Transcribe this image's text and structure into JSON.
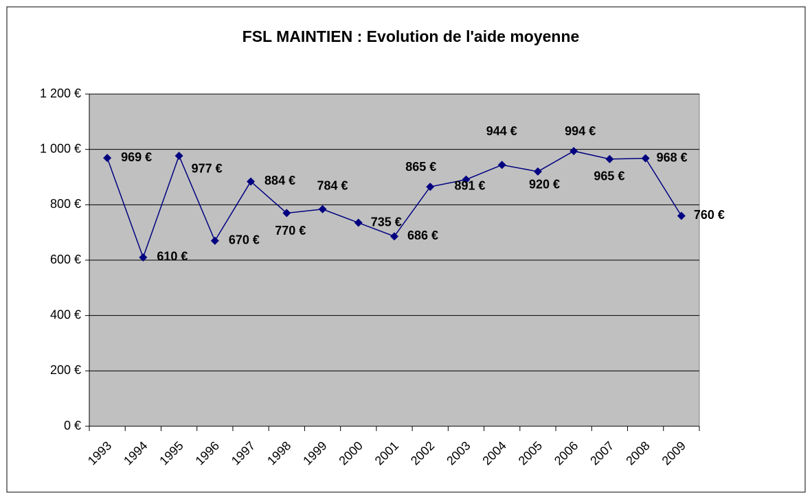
{
  "chart_data": {
    "type": "line",
    "title": "FSL MAINTIEN : Evolution de l'aide moyenne",
    "categories": [
      "1993",
      "1994",
      "1995",
      "1996",
      "1997",
      "1998",
      "1999",
      "2000",
      "2001",
      "2002",
      "2003",
      "2004",
      "2005",
      "2006",
      "2007",
      "2008",
      "2009"
    ],
    "series": [
      {
        "name": null,
        "color": "#000080",
        "values": [
          969,
          610,
          977,
          670,
          884,
          770,
          784,
          735,
          686,
          865,
          891,
          944,
          920,
          994,
          965,
          968,
          760
        ],
        "value_labels": [
          "969 €",
          "610 €",
          "977 €",
          "670 €",
          "884 €",
          "770 €",
          "784 €",
          "735 €",
          "686 €",
          "865 €",
          "891 €",
          "944 €",
          "920 €",
          "994 €",
          "965 €",
          "968 €",
          "760 €"
        ]
      }
    ],
    "ylim": [
      0,
      1200
    ],
    "yticks": [
      {
        "value": 0,
        "label": "0 €"
      },
      {
        "value": 200,
        "label": "200 €"
      },
      {
        "value": 400,
        "label": "400 €"
      },
      {
        "value": 600,
        "label": "600 €"
      },
      {
        "value": 800,
        "label": "800 €"
      },
      {
        "value": 1000,
        "label": "1 000 €"
      },
      {
        "value": 1200,
        "label": "1 200 €"
      }
    ],
    "grid": true,
    "plot_background": "#c0c0c0"
  }
}
